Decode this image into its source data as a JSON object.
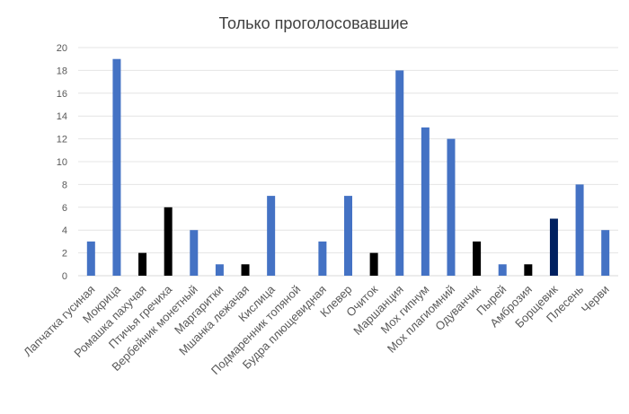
{
  "chart_data": {
    "type": "bar",
    "title": "Только проголосовавшие",
    "xlabel": "",
    "ylabel": "",
    "ylim": [
      0,
      20
    ],
    "yticks": [
      0,
      2,
      4,
      6,
      8,
      10,
      12,
      14,
      16,
      18,
      20
    ],
    "grid": true,
    "legend": "none",
    "categories": [
      "Лапчатка гусиная",
      "Мокрица",
      "Ромашка пахучая",
      "Птичья гречиха",
      "Вербейник монетный",
      "Маргаритки",
      "Мшанка лежачая",
      "Кислица",
      "Подмаренник топяной",
      "Будра плющевидная",
      "Клевер",
      "Очиток",
      "Маршанция",
      "Мох гипнум",
      "Мох плагиомний",
      "Одуванчик",
      "Пырей",
      "Амброзия",
      "Борщевик",
      "Плесень",
      "Черви"
    ],
    "values": [
      3,
      19,
      2,
      6,
      4,
      1,
      1,
      7,
      0,
      3,
      7,
      2,
      18,
      13,
      12,
      3,
      1,
      1,
      5,
      8,
      4
    ],
    "bar_colors": [
      "#4472c4",
      "#4472c4",
      "#000000",
      "#000000",
      "#4472c4",
      "#4472c4",
      "#000000",
      "#4472c4",
      "#4472c4",
      "#4472c4",
      "#4472c4",
      "#000000",
      "#4472c4",
      "#4472c4",
      "#4472c4",
      "#000000",
      "#4472c4",
      "#000000",
      "#002060",
      "#4472c4",
      "#4472c4"
    ]
  }
}
